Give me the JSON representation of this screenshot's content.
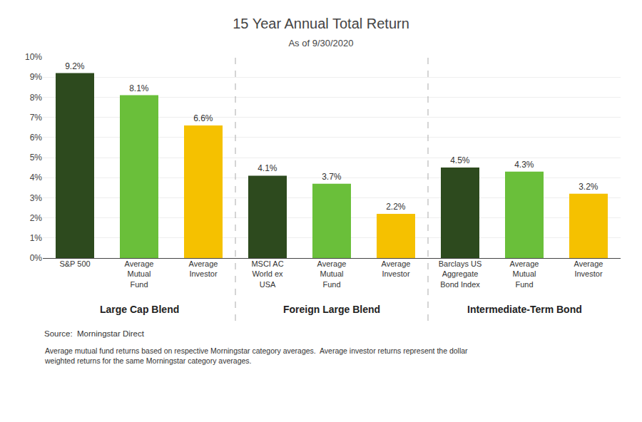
{
  "chart_data": {
    "type": "bar",
    "title": "15 Year Annual Total Return",
    "subtitle": "As of 9/30/2020",
    "categories": [
      "S&P 500",
      "Average\nMutual\nFund",
      "Average\nInvestor",
      "MSCI AC\nWorld ex\nUSA",
      "Average\nMutual\nFund",
      "Average\nInvestor",
      "Barclays US\nAggregate\nBond Index",
      "Average\nMutual\nFund",
      "Average\nInvestor"
    ],
    "groups": [
      "Large Cap Blend",
      "Large Cap Blend",
      "Large Cap Blend",
      "Foreign Large Blend",
      "Foreign Large Blend",
      "Foreign Large Blend",
      "Intermediate-Term Bond",
      "Intermediate-Term Bond",
      "Intermediate-Term Bond"
    ],
    "values": [
      9.2,
      8.1,
      6.6,
      4.1,
      3.7,
      2.2,
      4.5,
      4.3,
      3.2
    ],
    "value_labels": [
      "9.2%",
      "8.1%",
      "6.6%",
      "4.1%",
      "3.7%",
      "2.2%",
      "4.5%",
      "4.3%",
      "3.2%"
    ],
    "data_labels": true,
    "colors": [
      "#2d4a1e",
      "#6abf3a",
      "#f5c100",
      "#2d4a1e",
      "#6abf3a",
      "#f5c100",
      "#2d4a1e",
      "#6abf3a",
      "#f5c100"
    ],
    "ylim": [
      0,
      10
    ],
    "yticks": [
      {
        "value": 0,
        "label": "0%"
      },
      {
        "value": 1,
        "label": "1%"
      },
      {
        "value": 2,
        "label": "2%"
      },
      {
        "value": 3,
        "label": "3%"
      },
      {
        "value": 4,
        "label": "4%"
      },
      {
        "value": 5,
        "label": "5%"
      },
      {
        "value": 6,
        "label": "6%"
      },
      {
        "value": 7,
        "label": "7%"
      },
      {
        "value": 8,
        "label": "8%"
      },
      {
        "value": 9,
        "label": "9%"
      },
      {
        "value": 10,
        "label": "10%"
      }
    ],
    "grid": true,
    "annotations": [
      "Source:  Morningstar Direct",
      "Average mutual fund returns based on respective Morningstar category averages.  Average investor returns represent the dollar\nweighted returns for the same Morningstar category averages."
    ]
  }
}
